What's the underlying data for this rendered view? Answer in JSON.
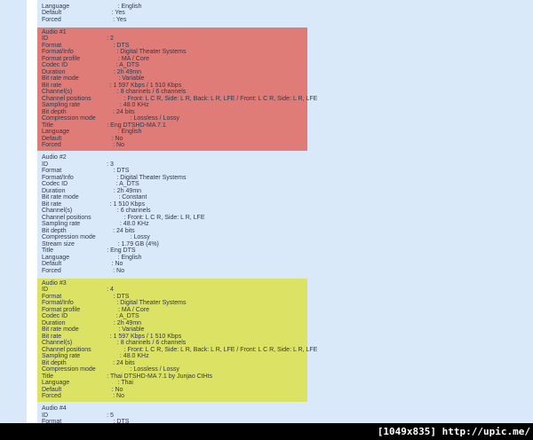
{
  "page": {
    "background_color": "#d9e9fa",
    "text_color": "#30394a",
    "gutter_color": "#ffffff"
  },
  "watermark": {
    "text": "[1049x835] http://upic.me/",
    "bar_color": "#000000",
    "text_color": "#ffffff"
  },
  "sections": [
    {
      "title": "",
      "highlight": "",
      "rows": [
        {
          "label": "Language",
          "value": "English"
        },
        {
          "label": "Default",
          "value": "Yes"
        },
        {
          "label": "Forced",
          "value": "Yes"
        }
      ]
    },
    {
      "title": "Audio #1",
      "highlight": "#df7c78",
      "rows": [
        {
          "label": "ID",
          "value": "2"
        },
        {
          "label": "Format",
          "value": "DTS"
        },
        {
          "label": "Format/Info",
          "value": "Digital Theater Systems"
        },
        {
          "label": "Format profile",
          "value": "MA / Core"
        },
        {
          "label": "Codec ID",
          "value": "A_DTS"
        },
        {
          "label": "Duration",
          "value": "2h 49mn"
        },
        {
          "label": "Bit rate mode",
          "value": "Variable"
        },
        {
          "label": "Bit rate",
          "value": "1 597 Kbps / 1 510 Kbps"
        },
        {
          "label": "Channel(s)",
          "value": "8 channels / 6 channels"
        },
        {
          "label": "Channel positions",
          "value": "Front: L C R, Side: L R, Back: L R, LFE / Front: L C R, Side: L R, LFE"
        },
        {
          "label": "Sampling rate",
          "value": "48.0 KHz"
        },
        {
          "label": "Bit depth",
          "value": "24 bits"
        },
        {
          "label": "Compression mode",
          "value": "Lossless / Lossy"
        },
        {
          "label": "Title",
          "value": "Eng DTSHD-MA 7.1"
        },
        {
          "label": "Language",
          "value": "English"
        },
        {
          "label": "Default",
          "value": "No"
        },
        {
          "label": "Forced",
          "value": "No"
        }
      ]
    },
    {
      "title": "Audio #2",
      "highlight": "",
      "rows": [
        {
          "label": "ID",
          "value": "3"
        },
        {
          "label": "Format",
          "value": "DTS"
        },
        {
          "label": "Format/Info",
          "value": "Digital Theater Systems"
        },
        {
          "label": "Codec ID",
          "value": "A_DTS"
        },
        {
          "label": "Duration",
          "value": "2h 49mn"
        },
        {
          "label": "Bit rate mode",
          "value": "Constant"
        },
        {
          "label": "Bit rate",
          "value": "1 510 Kbps"
        },
        {
          "label": "Channel(s)",
          "value": "6 channels"
        },
        {
          "label": "Channel positions",
          "value": "Front: L C R, Side: L R, LFE"
        },
        {
          "label": "Sampling rate",
          "value": "48.0 KHz"
        },
        {
          "label": "Bit depth",
          "value": "24 bits"
        },
        {
          "label": "Compression mode",
          "value": "Lossy"
        },
        {
          "label": "Stream size",
          "value": "1.79 GB (4%)"
        },
        {
          "label": "Title",
          "value": "Eng DTS"
        },
        {
          "label": "Language",
          "value": "English"
        },
        {
          "label": "Default",
          "value": "No"
        },
        {
          "label": "Forced",
          "value": "No"
        }
      ]
    },
    {
      "title": "Audio #3",
      "highlight": "#dce263",
      "rows": [
        {
          "label": "ID",
          "value": "4"
        },
        {
          "label": "Format",
          "value": "DTS"
        },
        {
          "label": "Format/Info",
          "value": "Digital Theater Systems"
        },
        {
          "label": "Format profile",
          "value": "MA / Core"
        },
        {
          "label": "Codec ID",
          "value": "A_DTS"
        },
        {
          "label": "Duration",
          "value": "2h 49mn"
        },
        {
          "label": "Bit rate mode",
          "value": "Variable"
        },
        {
          "label": "Bit rate",
          "value": "1 597 Kbps / 1 510 Kbps"
        },
        {
          "label": "Channel(s)",
          "value": "8 channels / 6 channels"
        },
        {
          "label": "Channel positions",
          "value": "Front: L C R, Side: L R, Back: L R, LFE / Front: L C R, Side: L R, LFE"
        },
        {
          "label": "Sampling rate",
          "value": "48.0 KHz"
        },
        {
          "label": "Bit depth",
          "value": "24 bits"
        },
        {
          "label": "Compression mode",
          "value": "Lossless / Lossy"
        },
        {
          "label": "Title",
          "value": "Thai DTSHD-MA 7.1 by Junjao CtHts"
        },
        {
          "label": "Language",
          "value": "Thai"
        },
        {
          "label": "Default",
          "value": "No"
        },
        {
          "label": "Forced",
          "value": "No"
        }
      ]
    },
    {
      "title": "Audio #4",
      "highlight": "",
      "rows": [
        {
          "label": "ID",
          "value": "5"
        },
        {
          "label": "Format",
          "value": "DTS"
        }
      ]
    }
  ]
}
